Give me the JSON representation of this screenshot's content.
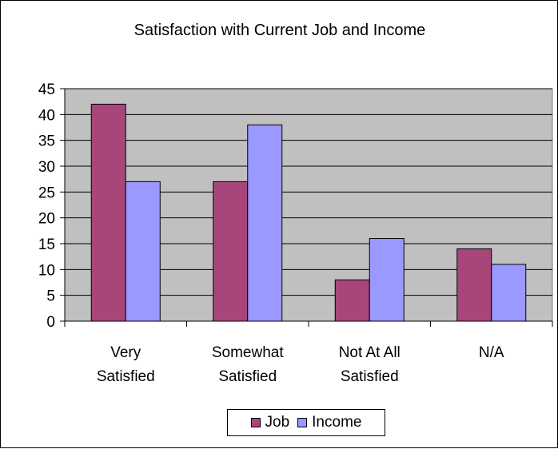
{
  "chart_data": {
    "type": "bar",
    "title": "Satisfaction with Current Job and Income",
    "categories": [
      [
        "Very",
        "Satisfied"
      ],
      [
        "Somewhat",
        "Satisfied"
      ],
      [
        "Not At All",
        "Satisfied"
      ],
      [
        "N/A"
      ]
    ],
    "series": [
      {
        "name": "Job",
        "values": [
          42,
          27,
          8,
          14
        ],
        "color": "#a8467a"
      },
      {
        "name": "Income",
        "values": [
          27,
          38,
          16,
          11
        ],
        "color": "#9999ff"
      }
    ],
    "ylim": [
      0,
      45
    ],
    "yticks": [
      0,
      5,
      10,
      15,
      20,
      25,
      30,
      35,
      40,
      45
    ],
    "grid": true,
    "plot_background": "#c0c0c0",
    "legend_position": "bottom"
  }
}
